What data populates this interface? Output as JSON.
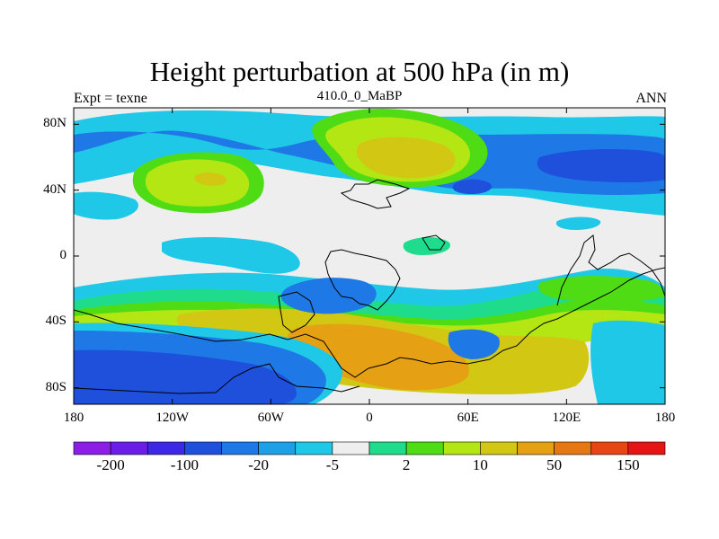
{
  "title": "Height perturbation at 500 hPa (in m)",
  "experiment_label": "Expt = texne",
  "time_label": "410.0_0_MaBP",
  "season_label": "ANN",
  "lat_labels": [
    "80N",
    "40N",
    "0",
    "40S",
    "80S"
  ],
  "lat_values": [
    80,
    40,
    0,
    -40,
    -80
  ],
  "lon_labels": [
    "180",
    "120W",
    "60W",
    "0",
    "60E",
    "120E",
    "180"
  ],
  "lon_values": [
    -180,
    -120,
    -60,
    0,
    60,
    120,
    180
  ],
  "colorbar": {
    "labels": [
      "-200",
      "-100",
      "-20",
      "-5",
      "2",
      "10",
      "50",
      "150"
    ],
    "colors": [
      "#8c1ee6",
      "#6a1ee6",
      "#3c28e6",
      "#1e50dc",
      "#1e78e6",
      "#1ea0e6",
      "#1ec8e6",
      "#eeeeee",
      "#1edc8c",
      "#50dc14",
      "#b4e614",
      "#d2c814",
      "#e6a014",
      "#e67814",
      "#e64614",
      "#e61414"
    ]
  },
  "land_color": "#eeeeee"
}
